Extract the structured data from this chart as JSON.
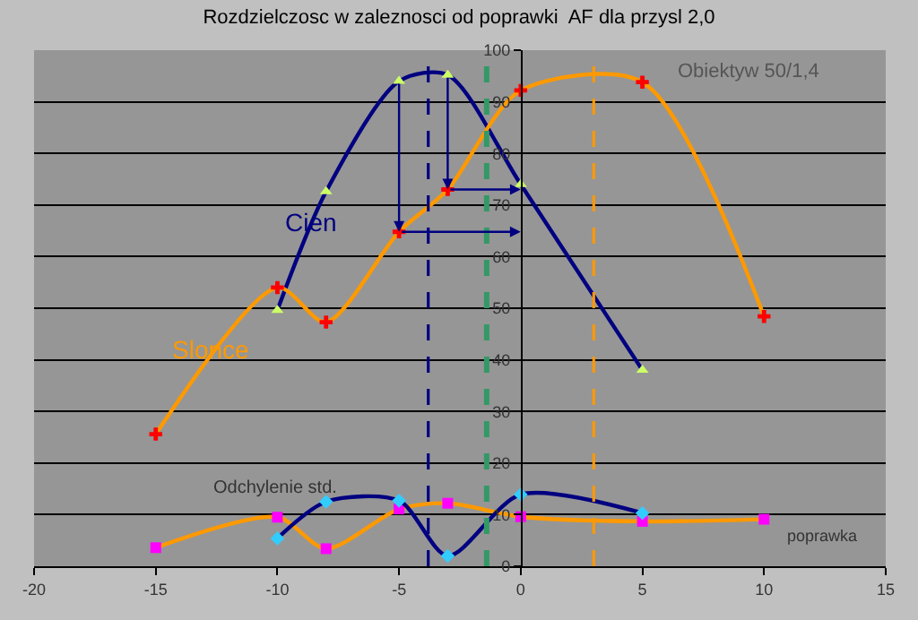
{
  "chart_data": {
    "type": "line",
    "title": "Rozdzielczosc w zaleznosci od poprawki  AF dla przysl 2,0",
    "xlabel": "poprawka",
    "x": [
      -15,
      -10,
      -8,
      -5,
      -3,
      0,
      5,
      10
    ],
    "series": [
      {
        "name": "Cien",
        "color": "#000080",
        "marker": "triangle",
        "colors": [
          "#ccff66",
          "#ccff66",
          "#ccff66",
          "#ccff66",
          "#ccff66",
          "#ccff66"
        ],
        "x": [
          -10,
          -8,
          -5,
          -3,
          0,
          5
        ],
        "values": [
          49.6,
          72.6,
          94,
          95.2,
          74,
          38
        ]
      },
      {
        "name": "Slonce",
        "color": "#ff9900",
        "marker": "cross",
        "colors": [
          "#ff0000",
          "#ff0000",
          "#ff0000",
          "#ff0000",
          "#ff0000",
          "#ff0000",
          "#ff0000",
          "#ff0000"
        ],
        "values": [
          25.6,
          54,
          47.3,
          64.8,
          73,
          92.2,
          93.8,
          48.4
        ]
      },
      {
        "color": "#ff9900",
        "marker": "square",
        "colors": [
          "#ff00ff",
          "#ff00ff",
          "#ff00ff",
          "#ff00ff",
          "#ff00ff",
          "#ff00ff",
          "#ff00ff",
          "#ff00ff"
        ],
        "values": [
          3.6,
          9.5,
          3.4,
          11.1,
          12.2,
          9.6,
          8.7,
          9.1
        ]
      },
      {
        "color": "#000080",
        "marker": "diamond",
        "colors": [
          "#33ccff",
          "#33ccff",
          "#33ccff",
          "#33ccff",
          "#33ccff",
          "#33ccff"
        ],
        "x": [
          -10,
          -8,
          -5,
          -3,
          0,
          5
        ],
        "values": [
          5.4,
          12.5,
          12.7,
          2,
          13.9,
          10.3
        ]
      }
    ],
    "annotations": [
      "Odchylenie std.",
      "Obiektyw 50/1,4"
    ],
    "ref_lines": [
      {
        "axis": "x",
        "value": -3.8,
        "color": "#000080",
        "line_style": "dashed"
      },
      {
        "axis": "x",
        "value": -1.4,
        "color": "#339966",
        "line_style": "dashed"
      },
      {
        "axis": "x",
        "value": 3,
        "color": "#ff9900",
        "line_style": "dashed"
      }
    ],
    "xlim": [
      -20,
      15
    ],
    "xticks": [
      -20,
      -15,
      -10,
      -5,
      0,
      5,
      10,
      15
    ],
    "ylim": [
      0,
      100
    ],
    "yticks": [
      0,
      10,
      20,
      30,
      40,
      50,
      60,
      70,
      80,
      90,
      100
    ],
    "grid": "y"
  }
}
